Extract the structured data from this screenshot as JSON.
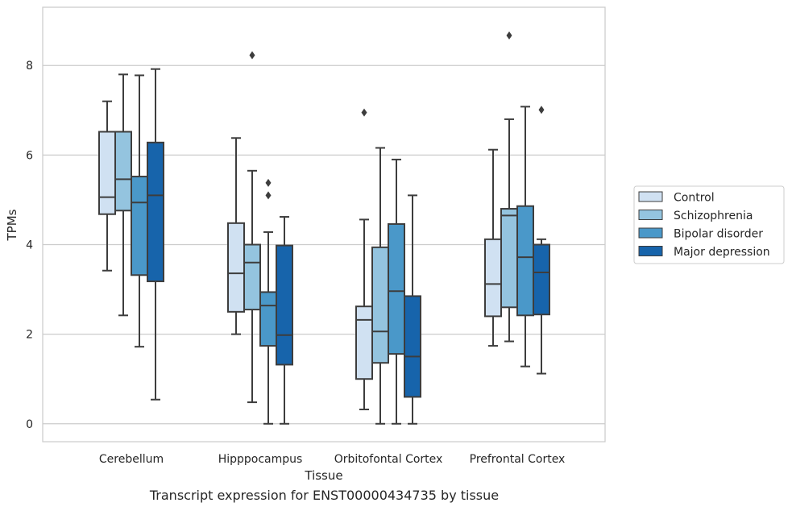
{
  "caption": "Transcript expression for ENST00000434735 by tissue",
  "chart_data": {
    "type": "box",
    "xlabel": "Tissue",
    "ylabel": "TPMs",
    "ylim": [
      -0.4,
      9.3
    ],
    "yticks": [
      0,
      2,
      4,
      6,
      8
    ],
    "grid": "horizontal",
    "legend_position": "right",
    "categories": [
      "Cerebellum",
      "Hipppocampus",
      "Orbitofontal Cortex",
      "Prefrontal Cortex"
    ],
    "series": [
      {
        "name": "Control",
        "color": "#d0e1f2",
        "boxes": [
          {
            "whislo": 3.42,
            "q1": 4.68,
            "med": 5.06,
            "q3": 6.52,
            "whishi": 7.2,
            "fliers": []
          },
          {
            "whislo": 2.0,
            "q1": 2.5,
            "med": 3.36,
            "q3": 4.48,
            "whishi": 6.38,
            "fliers": []
          },
          {
            "whislo": 0.32,
            "q1": 1.0,
            "med": 2.32,
            "q3": 2.62,
            "whishi": 4.56,
            "fliers": [
              6.95
            ]
          },
          {
            "whislo": 1.74,
            "q1": 2.4,
            "med": 3.12,
            "q3": 4.12,
            "whishi": 6.12,
            "fliers": []
          }
        ]
      },
      {
        "name": "Schizophrenia",
        "color": "#94c4df",
        "boxes": [
          {
            "whislo": 2.42,
            "q1": 4.76,
            "med": 5.46,
            "q3": 6.52,
            "whishi": 7.8,
            "fliers": []
          },
          {
            "whislo": 0.48,
            "q1": 2.55,
            "med": 3.6,
            "q3": 4.0,
            "whishi": 5.65,
            "fliers": [
              8.23
            ]
          },
          {
            "whislo": 0.0,
            "q1": 1.36,
            "med": 2.06,
            "q3": 3.94,
            "whishi": 6.16,
            "fliers": []
          },
          {
            "whislo": 1.84,
            "q1": 2.6,
            "med": 4.65,
            "q3": 4.8,
            "whishi": 6.8,
            "fliers": [
              8.67
            ]
          }
        ]
      },
      {
        "name": "Bipolar disorder",
        "color": "#4a98c9",
        "boxes": [
          {
            "whislo": 1.72,
            "q1": 3.32,
            "med": 4.94,
            "q3": 5.52,
            "whishi": 7.78,
            "fliers": []
          },
          {
            "whislo": 0.0,
            "q1": 1.74,
            "med": 2.64,
            "q3": 2.94,
            "whishi": 4.28,
            "fliers": [
              5.38,
              5.1
            ]
          },
          {
            "whislo": 0.0,
            "q1": 1.56,
            "med": 2.96,
            "q3": 4.46,
            "whishi": 5.9,
            "fliers": []
          },
          {
            "whislo": 1.28,
            "q1": 2.42,
            "med": 3.72,
            "q3": 4.86,
            "whishi": 7.08,
            "fliers": []
          }
        ]
      },
      {
        "name": "Major depression",
        "color": "#1764ab",
        "boxes": [
          {
            "whislo": 0.54,
            "q1": 3.18,
            "med": 5.1,
            "q3": 6.28,
            "whishi": 7.92,
            "fliers": []
          },
          {
            "whislo": 0.0,
            "q1": 1.32,
            "med": 1.98,
            "q3": 3.98,
            "whishi": 4.62,
            "fliers": []
          },
          {
            "whislo": 0.0,
            "q1": 0.6,
            "med": 1.5,
            "q3": 2.85,
            "whishi": 5.1,
            "fliers": []
          },
          {
            "whislo": 1.12,
            "q1": 2.44,
            "med": 3.38,
            "q3": 4.0,
            "whishi": 4.12,
            "fliers": [
              7.01
            ]
          }
        ]
      }
    ]
  }
}
